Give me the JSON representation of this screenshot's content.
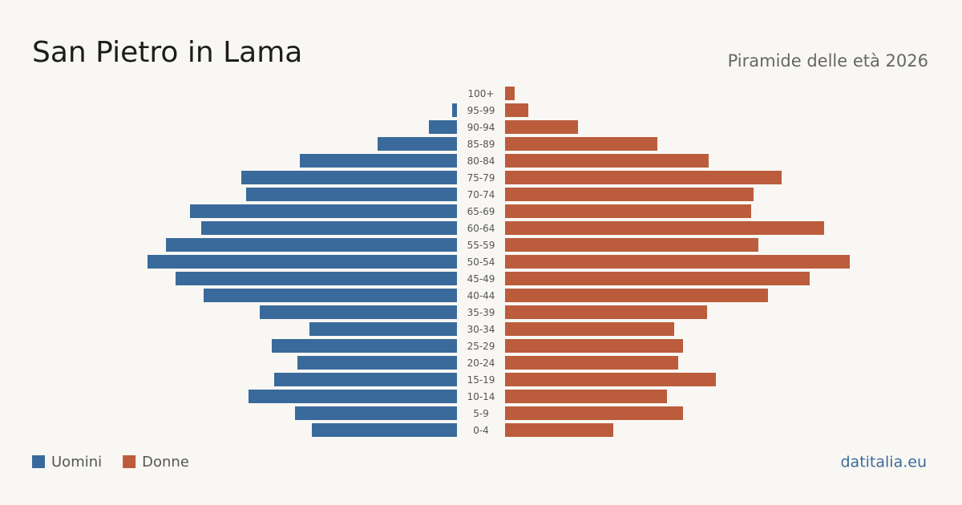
{
  "chart_data": {
    "type": "pyramid",
    "title": "San Pietro in Lama",
    "subtitle": "Piramide delle età 2026",
    "categories": [
      "100+",
      "95-99",
      "90-94",
      "85-89",
      "80-84",
      "75-79",
      "70-74",
      "65-69",
      "60-64",
      "55-59",
      "50-54",
      "45-49",
      "40-44",
      "35-39",
      "30-34",
      "25-29",
      "20-24",
      "15-19",
      "10-14",
      "5-9",
      "0-4"
    ],
    "series": [
      {
        "name": "Uomini",
        "color": "#3a6a9b",
        "values": [
          0,
          6,
          35,
          99,
          196,
          269,
          263,
          333,
          319,
          363,
          386,
          351,
          316,
          246,
          184,
          231,
          199,
          228,
          260,
          202,
          181
        ]
      },
      {
        "name": "Donne",
        "color": "#bb5d3c",
        "values": [
          12,
          29,
          91,
          190,
          254,
          345,
          310,
          307,
          398,
          316,
          430,
          380,
          328,
          252,
          211,
          222,
          216,
          263,
          202,
          222,
          135
        ]
      }
    ],
    "source": "datitalia.eu"
  }
}
